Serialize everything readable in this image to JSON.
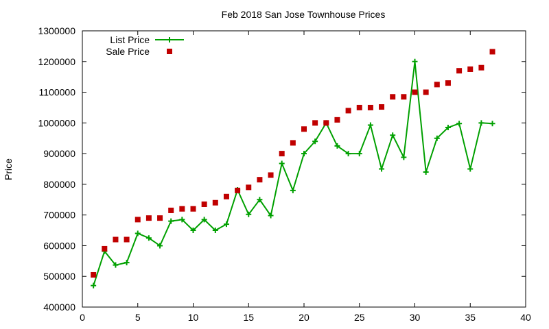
{
  "chart_data": {
    "type": "line",
    "title": "Feb 2018 San Jose Townhouse Prices",
    "xlabel": "",
    "ylabel": "Price",
    "xlim": [
      0,
      40
    ],
    "ylim": [
      400000,
      1300000
    ],
    "xticks": [
      0,
      5,
      10,
      15,
      20,
      25,
      30,
      35,
      40
    ],
    "yticks": [
      400000,
      500000,
      600000,
      700000,
      800000,
      900000,
      1000000,
      1100000,
      1200000,
      1300000
    ],
    "grid": false,
    "legend": "top-left",
    "series": [
      {
        "name": "List Price",
        "style": "line-plus",
        "color": "#00a000",
        "x": [
          1,
          2,
          3,
          4,
          5,
          6,
          7,
          8,
          9,
          10,
          11,
          12,
          13,
          14,
          15,
          16,
          17,
          18,
          19,
          20,
          21,
          22,
          23,
          24,
          25,
          26,
          27,
          28,
          29,
          30,
          31,
          32,
          33,
          34,
          35,
          36,
          37
        ],
        "values": [
          470000,
          582000,
          537000,
          545000,
          640000,
          625000,
          600000,
          680000,
          685000,
          650000,
          685000,
          650000,
          670000,
          782000,
          702000,
          750000,
          698000,
          868000,
          780000,
          900000,
          940000,
          1000000,
          925000,
          900000,
          900000,
          993000,
          850000,
          960000,
          888000,
          1200000,
          840000,
          950000,
          985000,
          998000,
          850000,
          1000000,
          998000
        ]
      },
      {
        "name": "Sale Price",
        "style": "square",
        "color": "#c00000",
        "x": [
          1,
          2,
          3,
          4,
          5,
          6,
          7,
          8,
          9,
          10,
          11,
          12,
          13,
          14,
          15,
          16,
          17,
          18,
          19,
          20,
          21,
          22,
          23,
          24,
          25,
          26,
          27,
          28,
          29,
          30,
          31,
          32,
          33,
          34,
          35,
          36,
          37
        ],
        "values": [
          505000,
          590000,
          620000,
          620000,
          685000,
          690000,
          690000,
          715000,
          720000,
          720000,
          735000,
          740000,
          760000,
          780000,
          790000,
          815000,
          830000,
          900000,
          935000,
          980000,
          1000000,
          1000000,
          1010000,
          1040000,
          1050000,
          1050000,
          1052000,
          1085000,
          1085000,
          1100000,
          1100000,
          1125000,
          1130000,
          1170000,
          1175000,
          1180000,
          1232000
        ]
      }
    ]
  }
}
